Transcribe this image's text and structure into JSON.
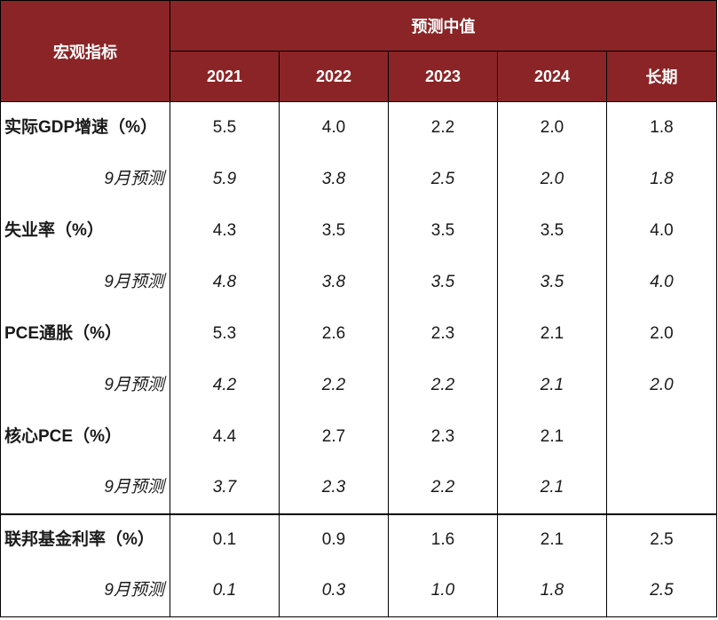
{
  "header": {
    "indicator_label": "宏观指标",
    "group_label": "预测中值",
    "columns": [
      "2021",
      "2022",
      "2023",
      "2024",
      "长期"
    ]
  },
  "rows": [
    {
      "label": "实际GDP增速（%）",
      "type": "main",
      "values": [
        "5.5",
        "4.0",
        "2.2",
        "2.0",
        "1.8"
      ]
    },
    {
      "label": "9月预测",
      "type": "sub",
      "values": [
        "5.9",
        "3.8",
        "2.5",
        "2.0",
        "1.8"
      ]
    },
    {
      "label": "失业率（%）",
      "type": "main",
      "values": [
        "4.3",
        "3.5",
        "3.5",
        "3.5",
        "4.0"
      ]
    },
    {
      "label": "9月预测",
      "type": "sub",
      "values": [
        "4.8",
        "3.8",
        "3.5",
        "3.5",
        "4.0"
      ]
    },
    {
      "label": "PCE通胀（%）",
      "type": "main",
      "values": [
        "5.3",
        "2.6",
        "2.3",
        "2.1",
        "2.0"
      ]
    },
    {
      "label": "9月预测",
      "type": "sub",
      "values": [
        "4.2",
        "2.2",
        "2.2",
        "2.1",
        "2.0"
      ]
    },
    {
      "label": "核心PCE（%）",
      "type": "main",
      "values": [
        "4.4",
        "2.7",
        "2.3",
        "2.1",
        ""
      ]
    },
    {
      "label": "9月预测",
      "type": "sub",
      "values": [
        "3.7",
        "2.3",
        "2.2",
        "2.1",
        ""
      ]
    },
    {
      "label": "联邦基金利率（%）",
      "type": "main",
      "values": [
        "0.1",
        "0.9",
        "1.6",
        "2.1",
        "2.5"
      ]
    },
    {
      "label": "9月预测",
      "type": "sub",
      "values": [
        "0.1",
        "0.3",
        "1.0",
        "1.8",
        "2.5"
      ]
    }
  ]
}
